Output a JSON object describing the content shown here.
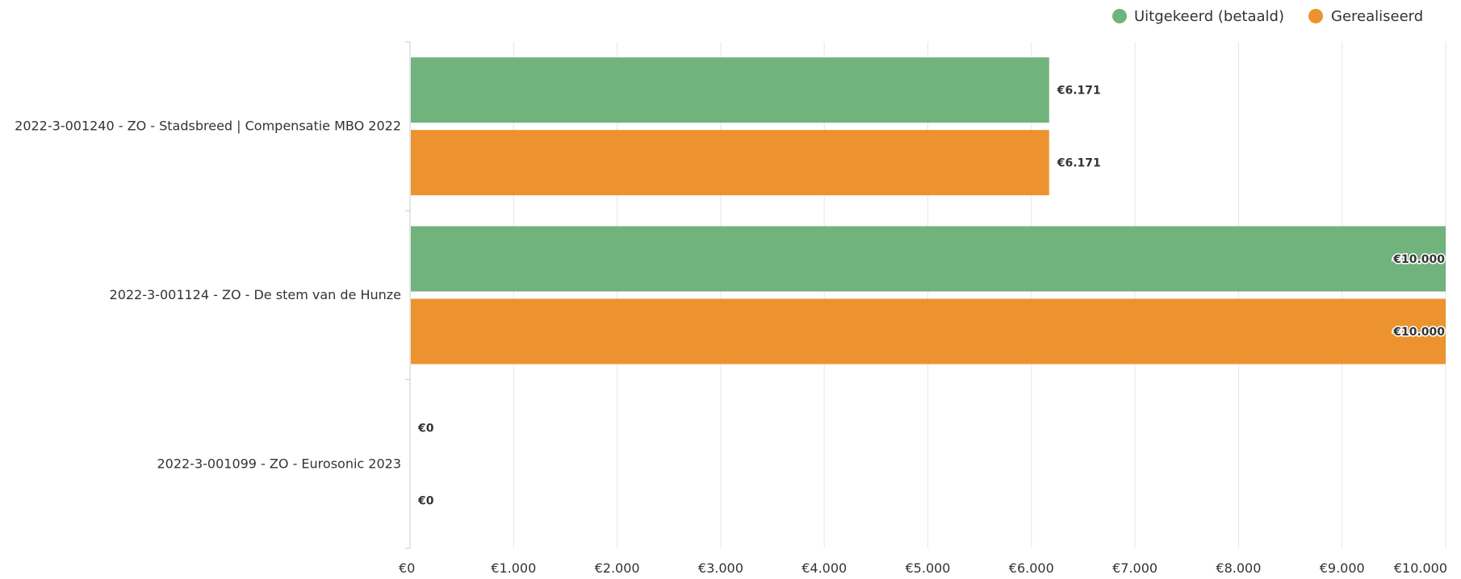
{
  "chart_data": {
    "type": "bar",
    "orientation": "horizontal",
    "categories": [
      "2022-3-001240 - ZO - Stadsbreed | Compensatie MBO 2022",
      "2022-3-001124 - ZO - De stem van de Hunze",
      "2022-3-001099 - ZO - Eurosonic 2023"
    ],
    "series": [
      {
        "name": "Uitgekeerd (betaald)",
        "color": "#71b37c",
        "values": [
          6171,
          10000,
          0
        ],
        "labels": [
          "€6.171",
          "€10.000",
          "€0"
        ]
      },
      {
        "name": "Gerealiseerd",
        "color": "#ec932f",
        "values": [
          6171,
          10000,
          0
        ],
        "labels": [
          "€6.171",
          "€10.000",
          "€0"
        ]
      }
    ],
    "xlim": [
      0,
      10000
    ],
    "x_ticks": [
      0,
      1000,
      2000,
      3000,
      4000,
      5000,
      6000,
      7000,
      8000,
      9000,
      10000
    ],
    "x_tick_labels": [
      "€0",
      "€1.000",
      "€2.000",
      "€3.000",
      "€4.000",
      "€5.000",
      "€6.000",
      "€7.000",
      "€8.000",
      "€9.000",
      "€10.000"
    ],
    "grid": true,
    "legend_position": "top-right",
    "title": "",
    "xlabel": "",
    "ylabel": ""
  }
}
